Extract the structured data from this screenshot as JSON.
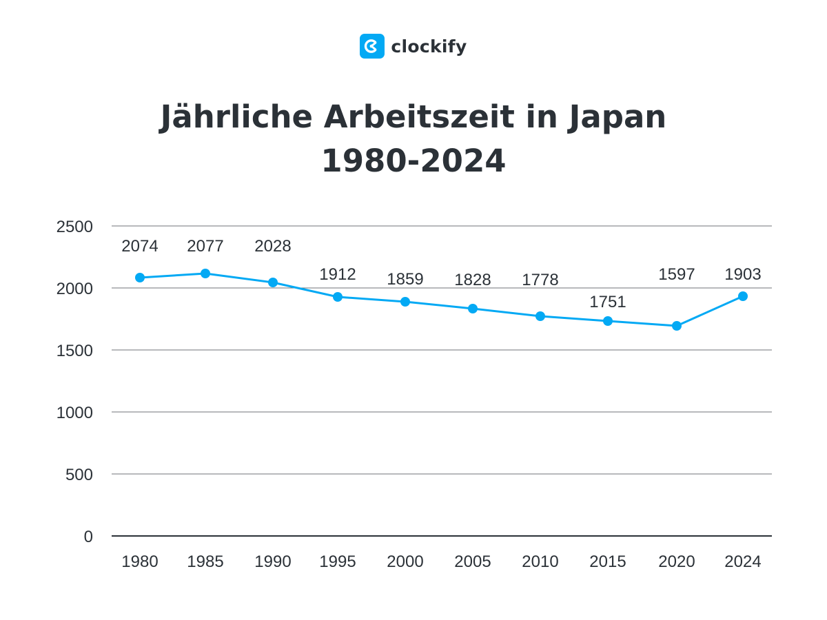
{
  "brand": {
    "name": "clockify",
    "accent_color": "#03a9f4",
    "icon": "clockify-logo-icon"
  },
  "chart_data": {
    "type": "line",
    "title": "Jährliche Arbeitszeit in Japan",
    "subtitle": "1980-2024",
    "x": [
      "1980",
      "1985",
      "1990",
      "1995",
      "2000",
      "2005",
      "2010",
      "2015",
      "2020",
      "2024"
    ],
    "series": [
      {
        "values": [
          2074,
          2077,
          2028,
          1912,
          1859,
          1828,
          1778,
          1751,
          1597,
          1903
        ],
        "color": "#03a9f4"
      }
    ],
    "plotted_positions_note": "",
    "ylim": [
      0,
      2500
    ],
    "yticks": [
      0,
      500,
      1000,
      1500,
      2000,
      2500
    ],
    "grid": true,
    "legend": "none",
    "xlabel": "",
    "ylabel": ""
  }
}
